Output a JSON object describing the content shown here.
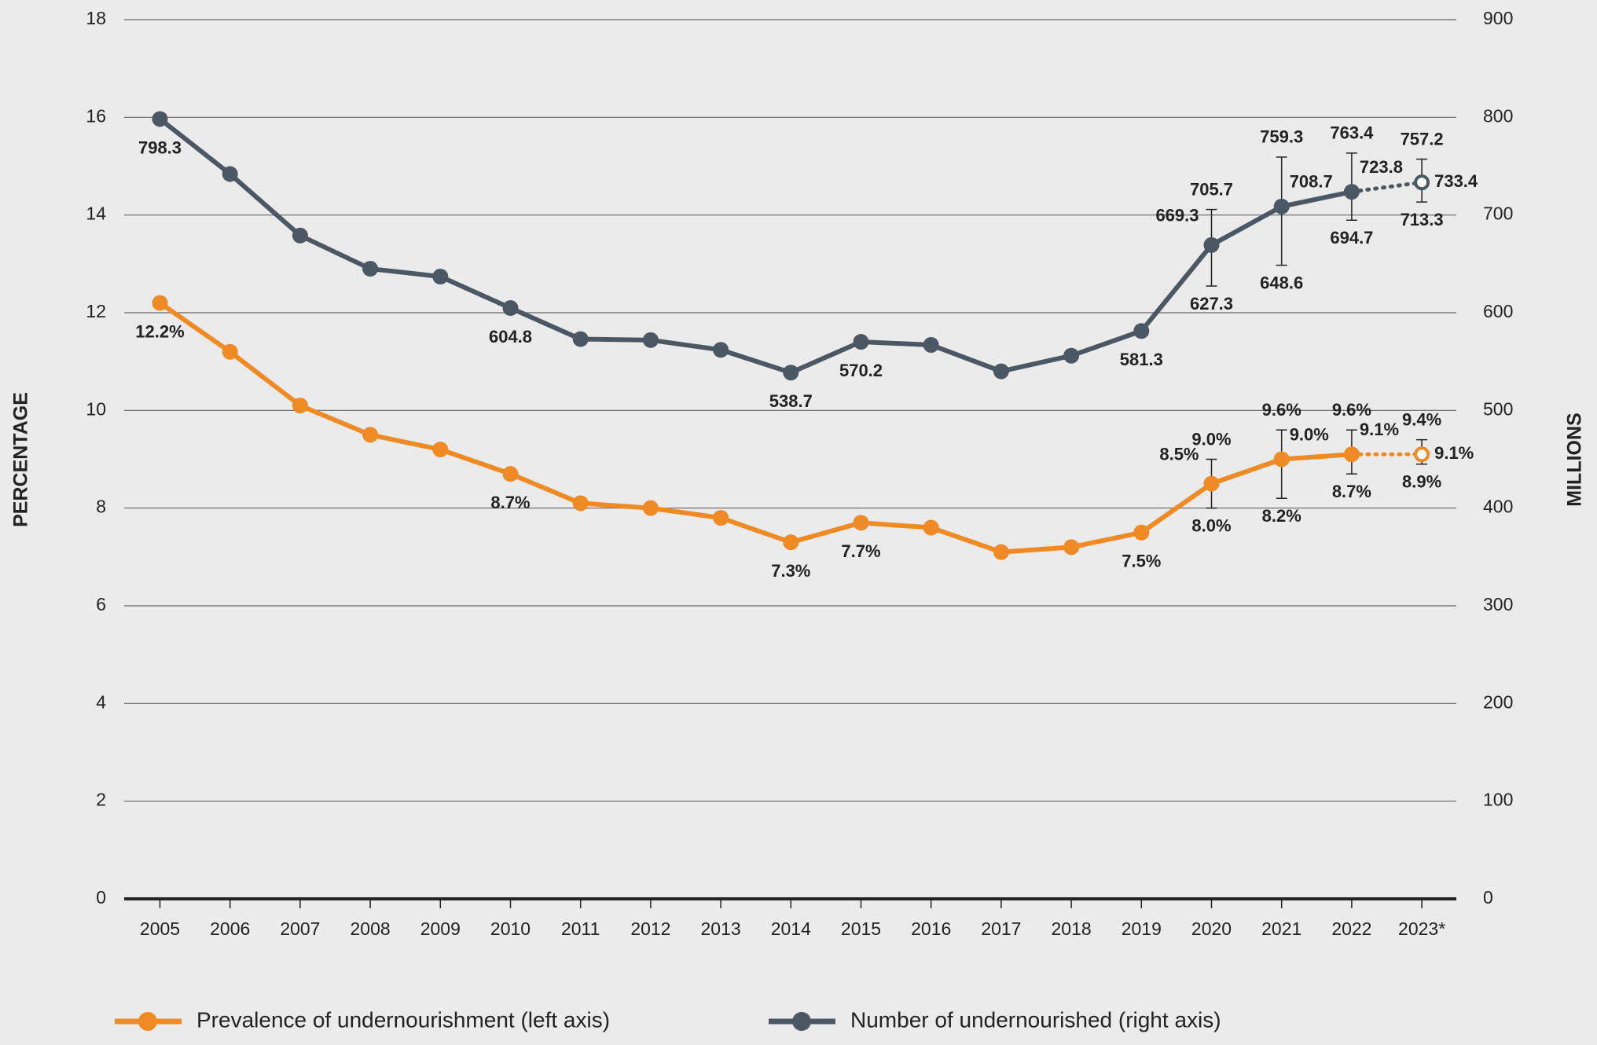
{
  "chart_data": {
    "type": "line",
    "categories": [
      "2005",
      "2006",
      "2007",
      "2008",
      "2009",
      "2010",
      "2011",
      "2012",
      "2013",
      "2014",
      "2015",
      "2016",
      "2017",
      "2018",
      "2019",
      "2020",
      "2021",
      "2022",
      "2023*"
    ],
    "projected": [
      false,
      false,
      false,
      false,
      false,
      false,
      false,
      false,
      false,
      false,
      false,
      false,
      false,
      false,
      false,
      false,
      false,
      false,
      true
    ],
    "ylabel": "PERCENTAGE",
    "y2label": "MILLIONS",
    "ylim": [
      0,
      18
    ],
    "yticks": [
      0,
      2,
      4,
      6,
      8,
      10,
      12,
      14,
      16,
      18
    ],
    "y2lim": [
      0,
      900
    ],
    "y2ticks": [
      0,
      100,
      200,
      300,
      400,
      500,
      600,
      700,
      800,
      900
    ],
    "grid": true,
    "legend": "bottom",
    "series": [
      {
        "name": "Prevalence of undernourishment (left axis)",
        "color": "#f08a24",
        "axis": "y",
        "values": [
          12.2,
          11.2,
          10.1,
          9.5,
          9.2,
          8.7,
          8.1,
          8.0,
          7.8,
          7.3,
          7.7,
          7.6,
          7.1,
          7.2,
          7.5,
          8.5,
          9.0,
          9.1,
          9.1
        ],
        "value_labels": [
          "12.2%",
          null,
          null,
          null,
          null,
          "8.7%",
          null,
          null,
          null,
          "7.3%",
          "7.7%",
          null,
          null,
          null,
          "7.5%",
          "8.5%",
          "9.0%",
          "9.1%",
          "9.1%"
        ],
        "lower": [
          null,
          null,
          null,
          null,
          null,
          null,
          null,
          null,
          null,
          null,
          null,
          null,
          null,
          null,
          null,
          8.0,
          8.2,
          8.7,
          8.9
        ],
        "lower_labels": [
          null,
          null,
          null,
          null,
          null,
          null,
          null,
          null,
          null,
          null,
          null,
          null,
          null,
          null,
          null,
          "8.0%",
          "8.2%",
          "8.7%",
          "8.9%"
        ],
        "upper": [
          null,
          null,
          null,
          null,
          null,
          null,
          null,
          null,
          null,
          null,
          null,
          null,
          null,
          null,
          null,
          9.0,
          9.6,
          9.6,
          9.4
        ],
        "upper_labels": [
          null,
          null,
          null,
          null,
          null,
          null,
          null,
          null,
          null,
          null,
          null,
          null,
          null,
          null,
          null,
          "9.0%",
          "9.6%",
          "9.6%",
          "9.4%"
        ]
      },
      {
        "name": "Number of undernourished (right axis)",
        "color": "#4b5762",
        "axis": "y2",
        "values": [
          798.3,
          742,
          679,
          645,
          637,
          604.8,
          573,
          572,
          562,
          538.7,
          570.2,
          567,
          540,
          556,
          581.3,
          669.3,
          708.7,
          723.8,
          733.4
        ],
        "value_labels": [
          "798.3",
          null,
          null,
          null,
          null,
          "604.8",
          null,
          null,
          null,
          "538.7",
          "570.2",
          null,
          null,
          null,
          "581.3",
          "669.3",
          "708.7",
          "723.8",
          "733.4"
        ],
        "lower": [
          null,
          null,
          null,
          null,
          null,
          null,
          null,
          null,
          null,
          null,
          null,
          null,
          null,
          null,
          null,
          627.3,
          648.6,
          694.7,
          713.3
        ],
        "upper": [
          null,
          null,
          null,
          null,
          null,
          null,
          null,
          null,
          null,
          null,
          null,
          null,
          null,
          null,
          null,
          705.7,
          759.3,
          763.4,
          757.2
        ]
      }
    ]
  }
}
